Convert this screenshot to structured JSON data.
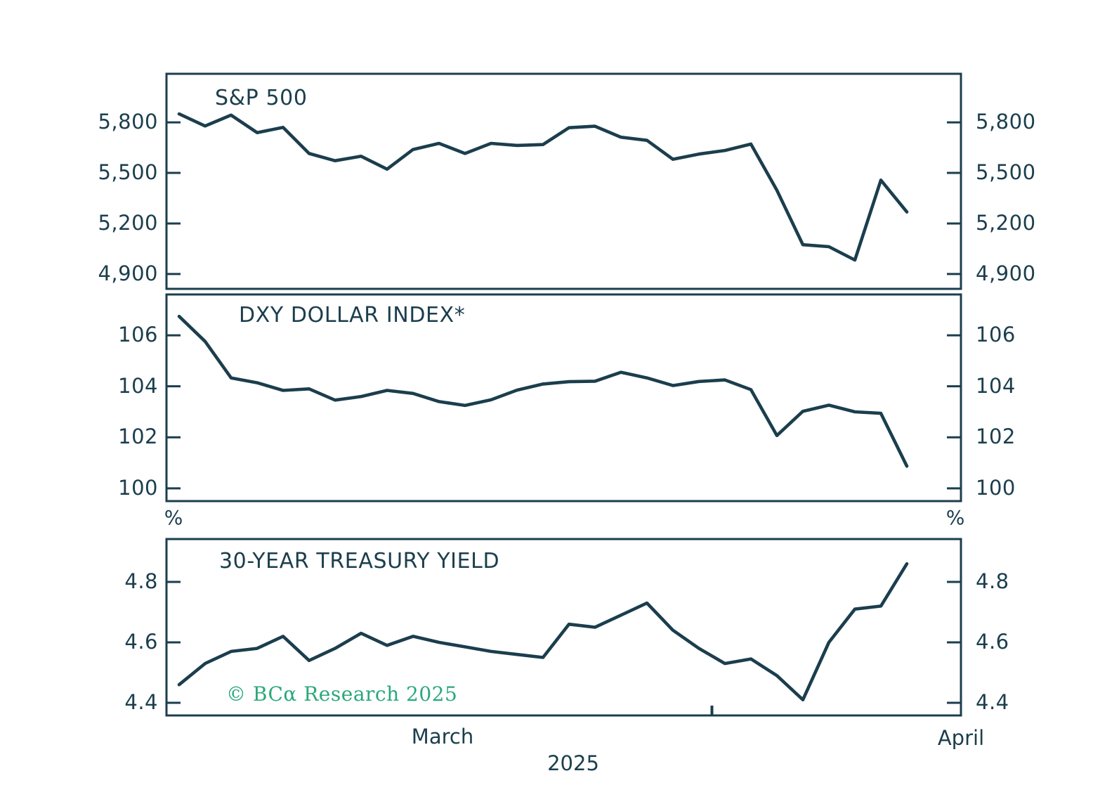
{
  "colors": {
    "line": "#1b3e4d",
    "text": "#1b3e4d",
    "copyright_green": "#2aa87b",
    "background": "#ffffff"
  },
  "xaxis": {
    "month_labels": [
      "March",
      "April"
    ],
    "year_label": "2025",
    "month_boundary_after_index": 20
  },
  "copyright": "© BCα Research 2025",
  "chart_data": [
    {
      "id": "sp500",
      "type": "line",
      "title": "S&P 500",
      "xlabel": "",
      "ylabel": "",
      "grid": false,
      "legend": "none",
      "x": [
        "Mar 3",
        "Mar 4",
        "Mar 5",
        "Mar 6",
        "Mar 7",
        "Mar 10",
        "Mar 11",
        "Mar 12",
        "Mar 13",
        "Mar 14",
        "Mar 17",
        "Mar 18",
        "Mar 19",
        "Mar 20",
        "Mar 21",
        "Mar 24",
        "Mar 25",
        "Mar 26",
        "Mar 27",
        "Mar 28",
        "Mar 31",
        "Apr 1",
        "Apr 2",
        "Apr 3",
        "Apr 4",
        "Apr 7",
        "Apr 8",
        "Apr 9",
        "Apr 10"
      ],
      "values": [
        5850,
        5778,
        5843,
        5739,
        5770,
        5615,
        5572,
        5599,
        5522,
        5639,
        5675,
        5615,
        5675,
        5663,
        5668,
        5768,
        5777,
        5712,
        5693,
        5581,
        5612,
        5633,
        5671,
        5397,
        5074,
        5062,
        4983,
        5457,
        5268
      ],
      "ylim": [
        4812,
        6088
      ],
      "ytick_values": [
        5800,
        5500,
        5200,
        4900
      ],
      "ytick_labels": [
        "5,800",
        "5,500",
        "5,200",
        "4,900"
      ]
    },
    {
      "id": "dxy",
      "type": "line",
      "title": "DXY DOLLAR INDEX*",
      "xlabel": "",
      "ylabel": "",
      "grid": false,
      "legend": "none",
      "x": [
        "Mar 3",
        "Mar 4",
        "Mar 5",
        "Mar 6",
        "Mar 7",
        "Mar 10",
        "Mar 11",
        "Mar 12",
        "Mar 13",
        "Mar 14",
        "Mar 17",
        "Mar 18",
        "Mar 19",
        "Mar 20",
        "Mar 21",
        "Mar 24",
        "Mar 25",
        "Mar 26",
        "Mar 27",
        "Mar 28",
        "Mar 31",
        "Apr 1",
        "Apr 2",
        "Apr 3",
        "Apr 4",
        "Apr 7",
        "Apr 8",
        "Apr 9",
        "Apr 10"
      ],
      "values": [
        106.74,
        105.76,
        104.33,
        104.14,
        103.84,
        103.9,
        103.46,
        103.6,
        103.84,
        103.72,
        103.4,
        103.25,
        103.47,
        103.85,
        104.09,
        104.18,
        104.2,
        104.55,
        104.33,
        104.03,
        104.19,
        104.25,
        103.87,
        102.07,
        103.02,
        103.26,
        103.0,
        102.94,
        100.87
      ],
      "ylim": [
        99.5,
        107.6
      ],
      "ytick_values": [
        106,
        104,
        102,
        100
      ],
      "ytick_labels": [
        "106",
        "104",
        "102",
        "100"
      ]
    },
    {
      "id": "treasury30y",
      "type": "line",
      "title": "30-YEAR TREASURY YIELD",
      "unit_label": "%",
      "xlabel": "",
      "ylabel": "%",
      "grid": false,
      "legend": "none",
      "x": [
        "Mar 3",
        "Mar 4",
        "Mar 5",
        "Mar 6",
        "Mar 7",
        "Mar 10",
        "Mar 11",
        "Mar 12",
        "Mar 13",
        "Mar 14",
        "Mar 17",
        "Mar 18",
        "Mar 19",
        "Mar 20",
        "Mar 21",
        "Mar 24",
        "Mar 25",
        "Mar 26",
        "Mar 27",
        "Mar 28",
        "Mar 31",
        "Apr 1",
        "Apr 2",
        "Apr 3",
        "Apr 4",
        "Apr 7",
        "Apr 8",
        "Apr 9",
        "Apr 10"
      ],
      "values": [
        4.46,
        4.53,
        4.57,
        4.58,
        4.62,
        4.54,
        4.58,
        4.63,
        4.59,
        4.62,
        4.6,
        4.585,
        4.57,
        4.56,
        4.55,
        4.66,
        4.65,
        4.69,
        4.73,
        4.64,
        4.58,
        4.53,
        4.545,
        4.49,
        4.41,
        4.6,
        4.71,
        4.72,
        4.86
      ],
      "ylim": [
        4.358,
        4.942
      ],
      "ytick_values": [
        4.8,
        4.6,
        4.4
      ],
      "ytick_labels": [
        "4.8",
        "4.6",
        "4.4"
      ]
    }
  ]
}
